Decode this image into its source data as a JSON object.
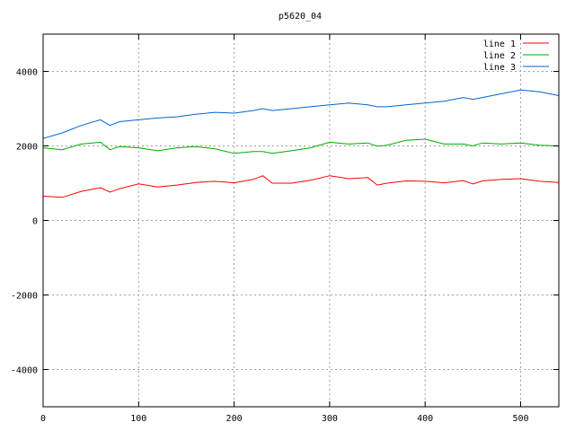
{
  "chart_data": {
    "type": "line",
    "title": "p5620_04",
    "xlabel": "",
    "ylabel": "",
    "xlim": [
      0,
      540
    ],
    "ylim": [
      -5000,
      5000
    ],
    "xticks": [
      0,
      100,
      200,
      300,
      400,
      500
    ],
    "yticks": [
      -4000,
      -2000,
      0,
      2000,
      4000
    ],
    "grid": true,
    "legend_position": "top-right",
    "x": [
      0,
      20,
      40,
      60,
      70,
      80,
      100,
      120,
      140,
      160,
      180,
      200,
      220,
      230,
      240,
      260,
      280,
      300,
      320,
      340,
      350,
      360,
      380,
      400,
      420,
      440,
      450,
      460,
      480,
      500,
      520,
      540
    ],
    "series": [
      {
        "name": "line 1",
        "color": "#ff0000",
        "values": [
          650,
          620,
          780,
          880,
          760,
          850,
          980,
          900,
          950,
          1020,
          1050,
          1010,
          1100,
          1200,
          1000,
          1000,
          1080,
          1200,
          1120,
          1150,
          950,
          1000,
          1060,
          1050,
          1010,
          1070,
          980,
          1060,
          1100,
          1120,
          1050,
          1020
        ]
      },
      {
        "name": "line 2",
        "color": "#00aa00",
        "values": [
          1950,
          1900,
          2050,
          2100,
          1900,
          1980,
          1950,
          1870,
          1950,
          1980,
          1920,
          1800,
          1850,
          1850,
          1800,
          1870,
          1950,
          2100,
          2050,
          2080,
          1990,
          2020,
          2150,
          2180,
          2050,
          2050,
          2000,
          2080,
          2050,
          2080,
          2020,
          2000
        ]
      },
      {
        "name": "line 3",
        "color": "#0066cc",
        "values": [
          2200,
          2350,
          2550,
          2700,
          2550,
          2650,
          2700,
          2750,
          2780,
          2850,
          2900,
          2880,
          2950,
          3000,
          2950,
          3000,
          3050,
          3100,
          3150,
          3100,
          3050,
          3050,
          3100,
          3150,
          3200,
          3300,
          3250,
          3300,
          3400,
          3500,
          3450,
          3350
        ]
      }
    ]
  }
}
